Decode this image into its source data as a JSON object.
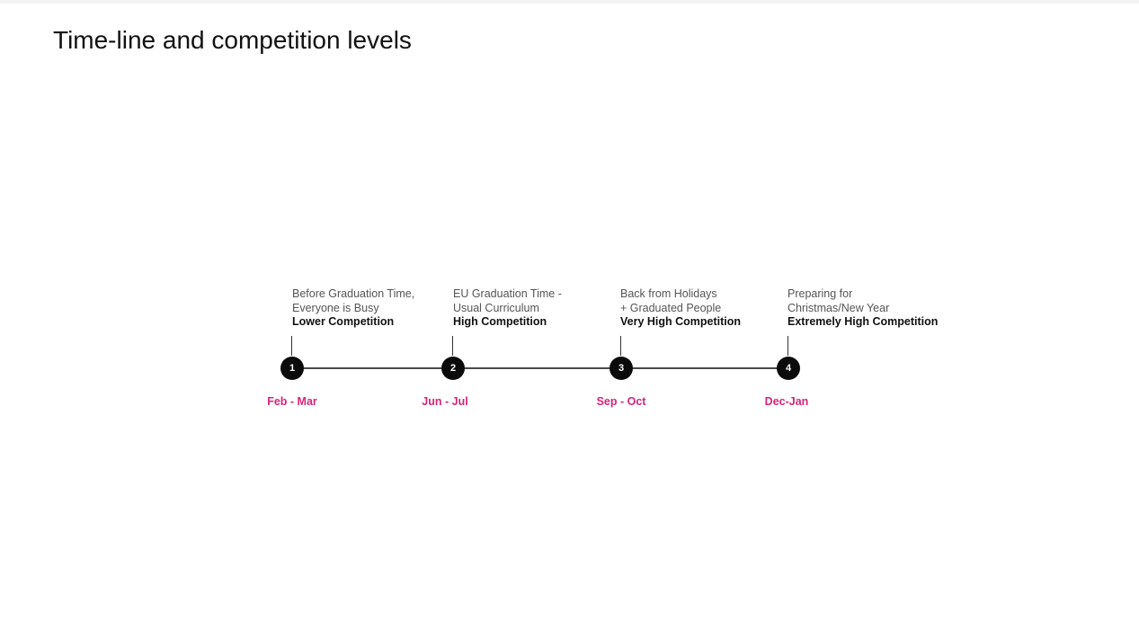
{
  "slide": {
    "title": "Time-line and competition levels"
  },
  "timeline": {
    "accent_color": "#d6247a",
    "line_color": "#4a4a4a",
    "milestones": [
      {
        "number": "1",
        "line1": "Before Graduation Time,",
        "line2": "Everyone is Busy",
        "level": "Lower Competition",
        "date": "Feb - Mar"
      },
      {
        "number": "2",
        "line1": "EU Graduation Time -",
        "line2": "Usual Curriculum",
        "level": "High Competition",
        "date": "Jun - Jul"
      },
      {
        "number": "3",
        "line1": "Back from Holidays",
        "line2": "+ Graduated People",
        "level": "Very High Competition",
        "date": "Sep - Oct"
      },
      {
        "number": "4",
        "line1": "Preparing for",
        "line2": "Christmas/New Year",
        "level": "Extremely High Competition",
        "date": "Dec-Jan"
      }
    ]
  }
}
